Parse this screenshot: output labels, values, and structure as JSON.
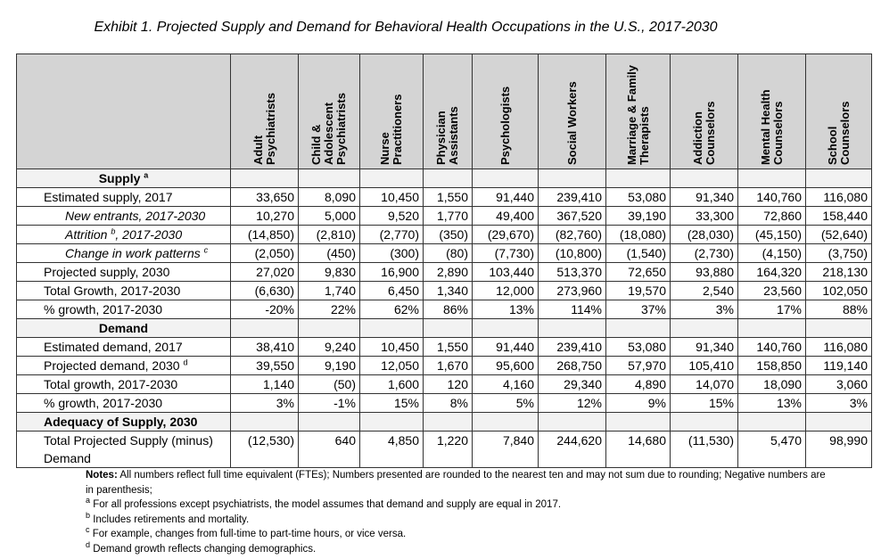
{
  "title": "Exhibit 1. Projected Supply and Demand for Behavioral Health Occupations in the U.S., 2017-2030",
  "table": {
    "columns": [
      "Adult Psychiatrists",
      "Child & Adolescent Psychiatrists",
      "Nurse Practitioners",
      "Physician Assistants",
      "Psychologists",
      "Social Workers",
      "Marriage & Family Therapists",
      "Addiction Counselors",
      "Mental Health Counselors",
      "School Counselors"
    ],
    "sections": [
      {
        "title": {
          "text": "Supply",
          "sup": "a"
        },
        "rows": [
          {
            "label": "Estimated supply, 2017",
            "values": [
              "33,650",
              "8,090",
              "10,450",
              "1,550",
              "91,440",
              "239,410",
              "53,080",
              "91,340",
              "140,760",
              "116,080"
            ]
          },
          {
            "label": "New entrants, 2017-2030",
            "values": [
              "10,270",
              "5,000",
              "9,520",
              "1,770",
              "49,400",
              "367,520",
              "39,190",
              "33,300",
              "72,860",
              "158,440"
            ]
          },
          {
            "label": {
              "text": "Attrition",
              "sup": "b",
              "after": ", 2017-2030"
            },
            "values": [
              "(14,850)",
              "(2,810)",
              "(2,770)",
              "(350)",
              "(29,670)",
              "(82,760)",
              "(18,080)",
              "(28,030)",
              "(45,150)",
              "(52,640)"
            ]
          },
          {
            "label": {
              "text": "Change in work patterns",
              "sup": "c"
            },
            "values": [
              "(2,050)",
              "(450)",
              "(300)",
              "(80)",
              "(7,730)",
              "(10,800)",
              "(1,540)",
              "(2,730)",
              "(4,150)",
              "(3,750)"
            ]
          },
          {
            "label": "Projected supply, 2030",
            "values": [
              "27,020",
              "9,830",
              "16,900",
              "2,890",
              "103,440",
              "513,370",
              "72,650",
              "93,880",
              "164,320",
              "218,130"
            ]
          },
          {
            "label": "Total Growth, 2017-2030",
            "values": [
              "(6,630)",
              "1,740",
              "6,450",
              "1,340",
              "12,000",
              "273,960",
              "19,570",
              "2,540",
              "23,560",
              "102,050"
            ]
          },
          {
            "label": "% growth, 2017-2030",
            "values": [
              "-20%",
              "22%",
              "62%",
              "86%",
              "13%",
              "114%",
              "37%",
              "3%",
              "17%",
              "88%"
            ]
          }
        ]
      },
      {
        "title": {
          "text": "Demand"
        },
        "rows": [
          {
            "label": "Estimated demand, 2017",
            "values": [
              "38,410",
              "9,240",
              "10,450",
              "1,550",
              "91,440",
              "239,410",
              "53,080",
              "91,340",
              "140,760",
              "116,080"
            ]
          },
          {
            "label": {
              "text": "Projected demand, 2030",
              "sup": "d"
            },
            "values": [
              "39,550",
              "9,190",
              "12,050",
              "1,670",
              "95,600",
              "268,750",
              "57,970",
              "105,410",
              "158,850",
              "119,140"
            ]
          },
          {
            "label": "Total growth, 2017-2030",
            "values": [
              "1,140",
              "(50)",
              "1,600",
              "120",
              "4,160",
              "29,340",
              "4,890",
              "14,070",
              "18,090",
              "3,060"
            ]
          },
          {
            "label": "% growth, 2017-2030",
            "values": [
              "3%",
              "-1%",
              "15%",
              "8%",
              "5%",
              "12%",
              "9%",
              "15%",
              "13%",
              "3%"
            ]
          }
        ]
      },
      {
        "title": {
          "text": "Adequacy of Supply, 2030"
        },
        "rows": [
          {
            "label": "Total Projected Supply (minus) Demand",
            "values": [
              "(12,530)",
              "640",
              "4,850",
              "1,220",
              "7,840",
              "244,620",
              "14,680",
              "(11,530)",
              "5,470",
              "98,990"
            ]
          }
        ]
      }
    ]
  },
  "notes": {
    "lead": "Notes:",
    "text": "All numbers reflect full time equivalent (FTEs); Numbers presented are rounded to the nearest ten and may not sum due to rounding; Negative numbers are in parenthesis;",
    "footnotes": [
      {
        "mark": "a",
        "text": "For all professions except psychiatrists, the model assumes that demand and supply are equal in 2017."
      },
      {
        "mark": "b",
        "text": "Includes retirements and mortality."
      },
      {
        "mark": "c",
        "text": "For example, changes from full-time to part-time hours, or vice versa."
      },
      {
        "mark": "d",
        "text": "Demand growth reflects changing demographics."
      }
    ]
  }
}
